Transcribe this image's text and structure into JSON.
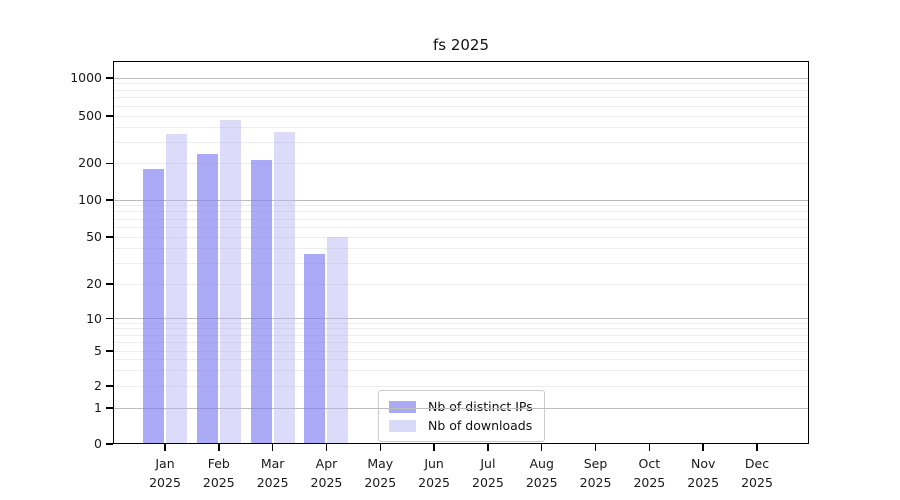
{
  "chart_data": {
    "type": "bar",
    "title": "fs 2025",
    "y_scale": "symlog",
    "ylabel": "",
    "xlabel": "",
    "y_ticks": [
      0,
      1,
      2,
      5,
      10,
      20,
      50,
      100,
      200,
      500,
      1000
    ],
    "ylim": [
      0,
      1400
    ],
    "grid": true,
    "legend_position": "lower-center-inside",
    "categories": [
      "Jan",
      "Feb",
      "Mar",
      "Apr",
      "May",
      "Jun",
      "Jul",
      "Aug",
      "Sep",
      "Oct",
      "Nov",
      "Dec"
    ],
    "year_label": "2025",
    "series": [
      {
        "name": "Nb of distinct IPs",
        "values": [
          180,
          240,
          212,
          36,
          null,
          null,
          null,
          null,
          null,
          null,
          null,
          null
        ]
      },
      {
        "name": "Nb of downloads",
        "values": [
          352,
          465,
          366,
          50,
          null,
          null,
          null,
          null,
          null,
          null,
          null,
          null
        ]
      }
    ]
  },
  "colors": {
    "bar_distinct_ips": "rgba(120,120,242,0.63)",
    "bar_downloads": "rgba(180,180,245,0.47)",
    "legend_swatch_distinct_ips": "#a9a9f4",
    "legend_swatch_downloads": "#d9d9fa",
    "major_gridline": "#bdbdbd",
    "minor_gridline": "#ededed",
    "axis": "#000000"
  }
}
